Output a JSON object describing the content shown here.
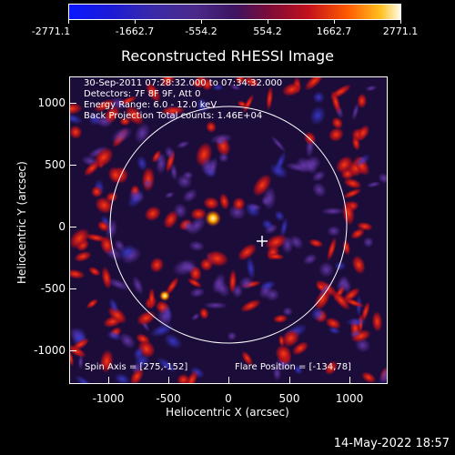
{
  "colorbar": {
    "labels": [
      "-2771.1",
      "-1662.7",
      "-554.2",
      "554.2",
      "1662.7",
      "2771.1"
    ]
  },
  "title": "Reconstructed RHESSI Image",
  "info": {
    "line1": "30-Sep-2011 07:28:32.000 to 07:34:32.000",
    "line2": "Detectors: 7F 8F 9F, Att 0",
    "line3": "Energy Range: 6.0 - 12.0 keV",
    "line4": "Back Projection    Total counts: 1.46E+04"
  },
  "footer_left": "Spin Axis = [275,-152]",
  "footer_right": "Flare Position = [-134,78]",
  "x_axis": {
    "title": "Heliocentric X (arcsec)",
    "ticks": [
      "-1000",
      "-500",
      "0",
      "500",
      "1000"
    ]
  },
  "y_axis": {
    "title": "Heliocentric Y (arcsec)",
    "ticks": [
      "1000",
      "500",
      "0",
      "-500",
      "-1000"
    ]
  },
  "date_stamp": "14-May-2022 18:57",
  "colors": {
    "background": "#000000",
    "limb": "#ffffff",
    "map_base": "#1b0c3a"
  }
}
